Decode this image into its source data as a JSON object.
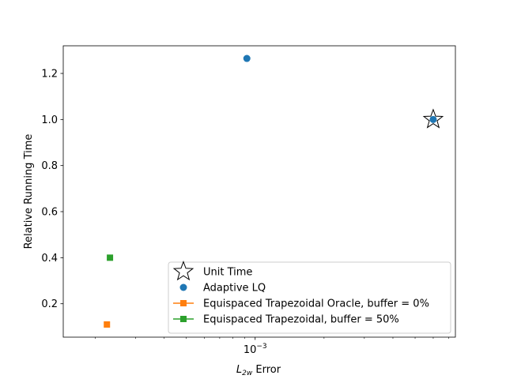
{
  "chart_data": {
    "type": "scatter",
    "xlabel_main": "L",
    "xlabel_sub": "2w",
    "xlabel_rest": " Error",
    "ylabel": "Relative Running Time",
    "xscale": "log",
    "xlim": [
      0.000145,
      0.0075
    ],
    "ylim": [
      0.055,
      1.32
    ],
    "grid": false,
    "legend_position": "lower-right",
    "x_major_ticks": [
      {
        "value": 0.001,
        "base": "10",
        "exp": "−3"
      }
    ],
    "x_minor_ticks": [
      0.0002,
      0.0003,
      0.0004,
      0.0005,
      0.0006,
      0.0007,
      0.0008,
      0.0009,
      0.002,
      0.003,
      0.004,
      0.005,
      0.006,
      0.007
    ],
    "y_ticks": [
      {
        "value": 0.2,
        "label": "0.2"
      },
      {
        "value": 0.4,
        "label": "0.4"
      },
      {
        "value": 0.6,
        "label": "0.6"
      },
      {
        "value": 0.8,
        "label": "0.8"
      },
      {
        "value": 1.0,
        "label": "1.0"
      },
      {
        "value": 1.2,
        "label": "1.2"
      }
    ],
    "series": [
      {
        "name": "Unit Time",
        "marker": "star",
        "color": "#ffffff",
        "stroke": "#000000",
        "points": [
          {
            "x": 0.006,
            "y": 1.0
          }
        ]
      },
      {
        "name": "Adaptive LQ",
        "marker": "circle",
        "color": "#1f77b4",
        "points": [
          {
            "x": 0.00092,
            "y": 1.265
          },
          {
            "x": 0.006,
            "y": 1.0
          }
        ]
      },
      {
        "name": "Equispaced Trapezoidal Oracle, buffer = 0%",
        "marker": "square",
        "line": true,
        "color": "#ff7f0e",
        "points": [
          {
            "x": 0.000225,
            "y": 0.11
          }
        ]
      },
      {
        "name": "Equispaced Trapezoidal, buffer = 50%",
        "marker": "square",
        "line": true,
        "color": "#2ca02c",
        "points": [
          {
            "x": 0.000232,
            "y": 0.4
          }
        ]
      }
    ]
  }
}
